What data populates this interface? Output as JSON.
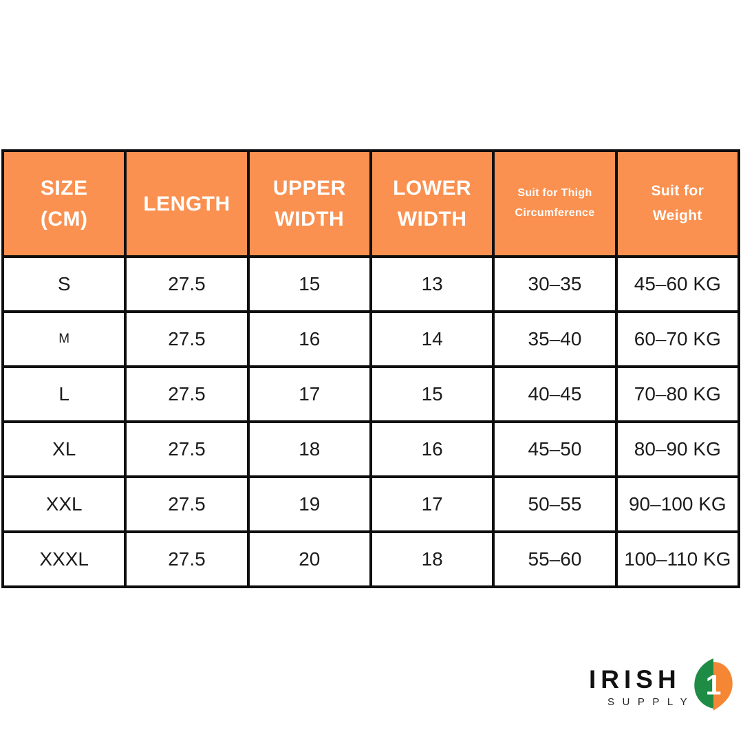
{
  "chart_data": {
    "type": "table",
    "title": "",
    "columns": [
      "SIZE\n(CM)",
      "LENGTH",
      "UPPER\nWIDTH",
      "LOWER\nWIDTH",
      "Suit for Thigh\nCircumference",
      "Suit for\nWeight"
    ],
    "rows": [
      [
        "S",
        "27.5",
        "15",
        "13",
        "30–35",
        "45–60 KG"
      ],
      [
        "M",
        "27.5",
        "16",
        "14",
        "35–40",
        "60–70 KG"
      ],
      [
        "L",
        "27.5",
        "17",
        "15",
        "40–45",
        "70–80 KG"
      ],
      [
        "XL",
        "27.5",
        "18",
        "16",
        "45–50",
        "80–90 KG"
      ],
      [
        "XXL",
        "27.5",
        "19",
        "17",
        "50–55",
        "90–100 KG"
      ],
      [
        "XXXL",
        "27.5",
        "20",
        "18",
        "55–60",
        "100–110 KG"
      ]
    ],
    "legend": "none",
    "grid": "full-borders"
  },
  "colors": {
    "header_bg": "#FA9150",
    "header_text": "#FFFFFF",
    "border": "#0E0E0E",
    "body_text": "#1C1C1C",
    "background": "#FFFFFF",
    "logo_green": "#1E8C45",
    "logo_orange": "#F58634",
    "logo_text": "#111111"
  },
  "logo": {
    "brand": "IRISH",
    "subtitle": "SUPPLY",
    "mark_icon": "green-orange-droplet-1-icon",
    "mark_digit": "1"
  }
}
